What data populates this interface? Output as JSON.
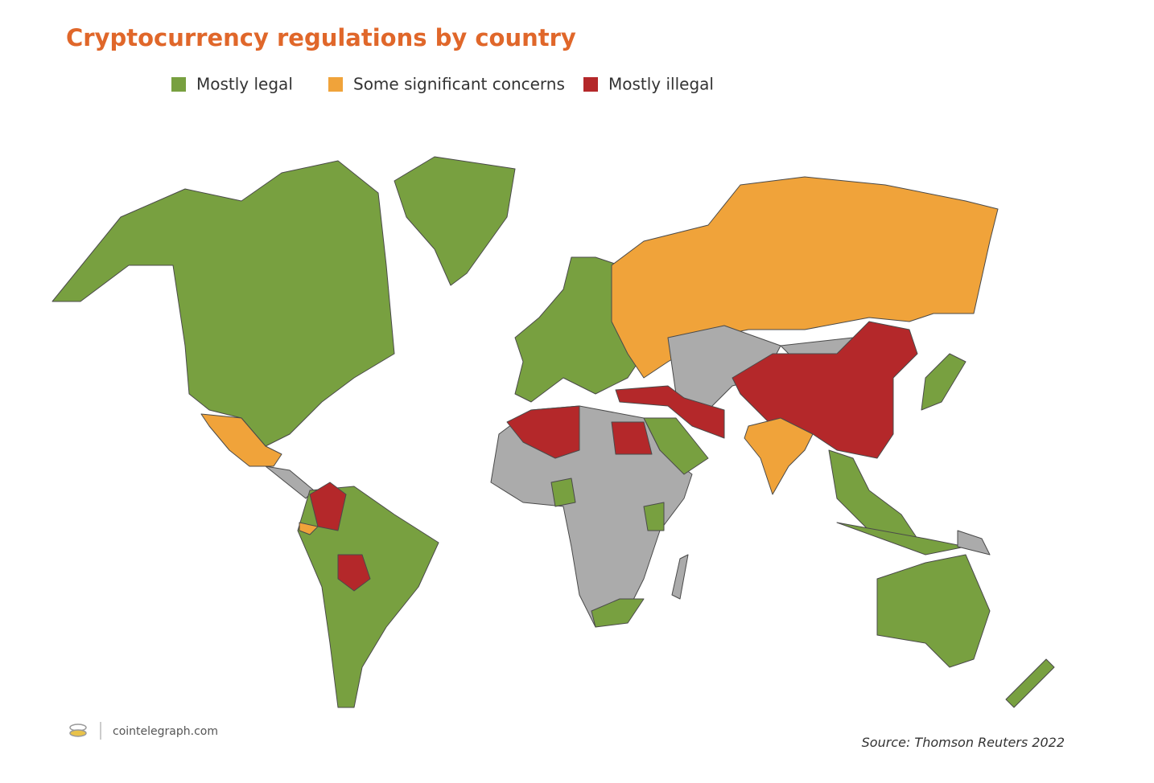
{
  "title": "Cryptocurrency regulations by country",
  "legend": [
    {
      "label": "Mostly legal",
      "color": "#78a040"
    },
    {
      "label": "Some significant concerns",
      "color": "#f0a33a"
    },
    {
      "label": "Mostly illegal",
      "color": "#b4282a"
    }
  ],
  "footer": {
    "brand": "cointelegraph.com",
    "source": "Source: Thomson Reuters 2022"
  }
}
